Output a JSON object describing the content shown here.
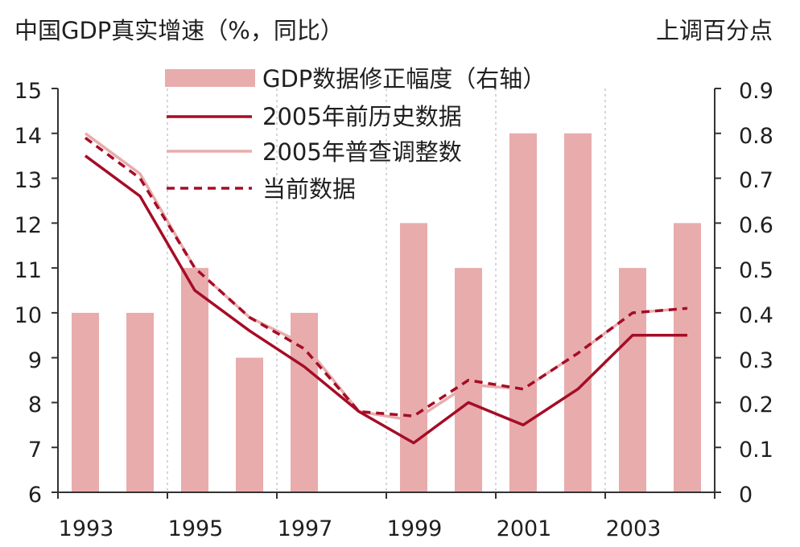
{
  "chart_data": {
    "type": "bar",
    "left_axis_title": "中国GDP真实增速（%，同比）",
    "right_axis_title": "上调百分点",
    "x": [
      1993,
      1994,
      1995,
      1996,
      1997,
      1998,
      1999,
      2000,
      2001,
      2002,
      2003,
      2004
    ],
    "x_tick_labels": [
      "1993",
      "1995",
      "1997",
      "1999",
      "2001",
      "2003"
    ],
    "ylim_left": [
      6,
      15
    ],
    "yticks_left": [
      "15",
      "14",
      "13",
      "12",
      "11",
      "10",
      "9",
      "8",
      "7",
      "6"
    ],
    "ylim_right": [
      0,
      0.9
    ],
    "yticks_right": [
      "0.9",
      "0.8",
      "0.7",
      "0.6",
      "0.5",
      "0.4",
      "0.3",
      "0.2",
      "0.1",
      "0"
    ],
    "grid": "vertical-dashed",
    "legend_position": "top-center",
    "bars": {
      "name": "GDP数据修正幅度（右轴）",
      "axis": "right",
      "color": "#e8acac",
      "values": [
        0.4,
        0.4,
        0.5,
        0.3,
        0.4,
        0.0,
        0.6,
        0.5,
        0.8,
        0.8,
        0.5,
        0.6
      ]
    },
    "series": [
      {
        "name": "2005年前历史数据",
        "axis": "left",
        "color": "#a50d26",
        "style": "solid",
        "values": [
          13.5,
          12.6,
          10.5,
          9.6,
          8.8,
          7.8,
          7.1,
          8.0,
          7.5,
          8.3,
          9.5,
          9.5
        ]
      },
      {
        "name": "2005年普查调整数",
        "axis": "left",
        "color": "#e8acac",
        "style": "solid",
        "values": [
          14.0,
          13.1,
          11.0,
          9.9,
          9.3,
          7.8,
          7.6,
          8.4,
          8.3,
          9.1,
          10.0,
          10.1
        ]
      },
      {
        "name": "当前数据",
        "axis": "left",
        "color": "#a50d26",
        "style": "dashed",
        "values": [
          13.9,
          13.0,
          11.0,
          9.9,
          9.2,
          7.8,
          7.7,
          8.5,
          8.3,
          9.1,
          10.0,
          10.1
        ]
      }
    ]
  }
}
